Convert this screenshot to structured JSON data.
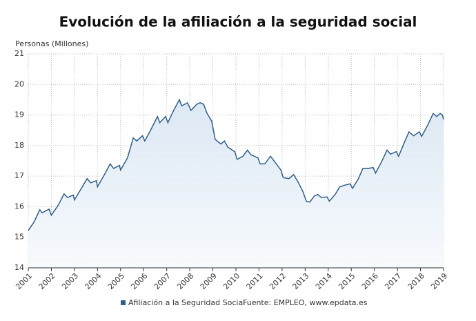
{
  "chart_data": {
    "type": "line",
    "title": "Evolución de la afiliación a la seguridad social",
    "y_label": "Personas (Millones)",
    "source": "Fuente: EMPLEO, www.epdata.es",
    "legend": "bottom",
    "grid": true,
    "x": [
      2001.0,
      2001.25,
      2001.5,
      2001.6,
      2001.9,
      2002.0,
      2002.3,
      2002.55,
      2002.7,
      2002.95,
      2003.0,
      2003.3,
      2003.55,
      2003.7,
      2003.95,
      2004.0,
      2004.3,
      2004.55,
      2004.7,
      2004.95,
      2005.0,
      2005.3,
      2005.55,
      2005.7,
      2005.95,
      2006.05,
      2006.3,
      2006.6,
      2006.7,
      2006.95,
      2007.05,
      2007.3,
      2007.55,
      2007.65,
      2007.9,
      2008.05,
      2008.3,
      2008.45,
      2008.6,
      2008.75,
      2008.95,
      2009.1,
      2009.35,
      2009.5,
      2009.65,
      2009.95,
      2010.05,
      2010.3,
      2010.5,
      2010.65,
      2010.95,
      2011.05,
      2011.25,
      2011.5,
      2011.7,
      2011.95,
      2012.05,
      2012.3,
      2012.5,
      2012.7,
      2012.9,
      2013.05,
      2013.2,
      2013.4,
      2013.55,
      2013.7,
      2013.95,
      2014.05,
      2014.3,
      2014.5,
      2014.7,
      2014.95,
      2015.05,
      2015.3,
      2015.5,
      2015.7,
      2015.95,
      2016.05,
      2016.3,
      2016.55,
      2016.7,
      2016.95,
      2017.05,
      2017.3,
      2017.5,
      2017.7,
      2017.95,
      2018.05,
      2018.3,
      2018.55,
      2018.7,
      2018.85,
      2018.95,
      2019.0
    ],
    "series": [
      {
        "name": "Afiliación a la Seguridad Social",
        "color": "#2e5d87",
        "values": [
          15.22,
          15.5,
          15.9,
          15.8,
          15.92,
          15.72,
          16.05,
          16.42,
          16.3,
          16.38,
          16.22,
          16.6,
          16.92,
          16.78,
          16.85,
          16.65,
          17.05,
          17.4,
          17.25,
          17.35,
          17.2,
          17.6,
          18.25,
          18.15,
          18.32,
          18.15,
          18.5,
          18.95,
          18.75,
          18.95,
          18.75,
          19.15,
          19.5,
          19.3,
          19.4,
          19.15,
          19.35,
          19.4,
          19.35,
          19.05,
          18.8,
          18.2,
          18.05,
          18.15,
          17.95,
          17.8,
          17.55,
          17.65,
          17.85,
          17.7,
          17.6,
          17.4,
          17.4,
          17.65,
          17.45,
          17.2,
          16.95,
          16.92,
          17.05,
          16.8,
          16.5,
          16.18,
          16.15,
          16.35,
          16.4,
          16.3,
          16.32,
          16.18,
          16.4,
          16.65,
          16.7,
          16.75,
          16.6,
          16.9,
          17.25,
          17.25,
          17.28,
          17.1,
          17.45,
          17.85,
          17.72,
          17.8,
          17.65,
          18.1,
          18.45,
          18.32,
          18.45,
          18.3,
          18.65,
          19.05,
          18.95,
          19.05,
          19.0,
          18.85
        ]
      }
    ],
    "xlim": [
      2001,
      2019
    ],
    "xticks": [
      2001,
      2002,
      2003,
      2004,
      2005,
      2006,
      2007,
      2008,
      2009,
      2010,
      2011,
      2012,
      2013,
      2014,
      2015,
      2016,
      2017,
      2018,
      2019
    ],
    "ylim": [
      14,
      21
    ],
    "yticks": [
      14,
      15,
      16,
      17,
      18,
      19,
      20,
      21
    ]
  }
}
